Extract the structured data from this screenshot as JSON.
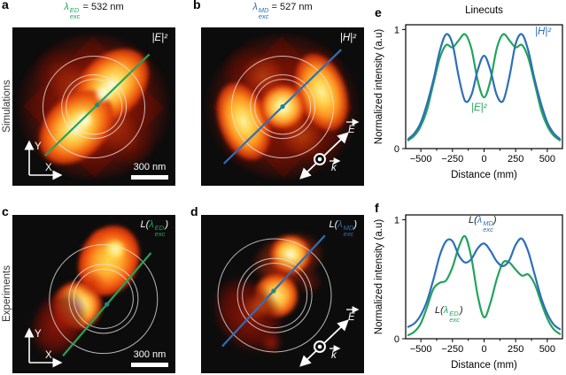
{
  "row_labels": {
    "simulations": "Simulations",
    "experiments": "Experiments"
  },
  "colors": {
    "ed_green": "#23a45c",
    "md_blue": "#2d6fb8",
    "teal_marker": "#1f8a7d",
    "hot_core": "#ffffff",
    "hot_mid": "#ff9e2a",
    "hot_low": "#7a120a",
    "panel_bg": "#0d0c0c"
  },
  "panels": {
    "a": {
      "letter": "a",
      "title": {
        "lambda": "λ",
        "sup": "ED",
        "sub": "exc",
        "rest": "= 532 nm"
      },
      "field_label": "|E|²",
      "scale_bar_label": "300 nm",
      "axes": {
        "x": "X",
        "y": "Y"
      }
    },
    "b": {
      "letter": "b",
      "title": {
        "lambda": "λ",
        "sup": "MD",
        "sub": "exc",
        "rest": "= 527 nm"
      },
      "field_label": "|H|²",
      "vectors": {
        "E": "E",
        "k": "k"
      }
    },
    "c": {
      "letter": "c",
      "label": {
        "pre": "L(",
        "lambda": "λ",
        "sup": "ED",
        "sub": "exc",
        "post": ")"
      },
      "scale_bar_label": "300 nm",
      "axes": {
        "x": "X",
        "y": "Y"
      }
    },
    "d": {
      "letter": "d",
      "label": {
        "pre": "L(",
        "lambda": "λ",
        "sup": "MD",
        "sub": "exc",
        "post": ")"
      },
      "vectors": {
        "E": "E",
        "k": "k"
      }
    },
    "e": {
      "letter": "e"
    },
    "f": {
      "letter": "f",
      "series_labels": {
        "MD": {
          "pre": "L(",
          "lambda": "λ",
          "sup": "MD",
          "sub": "exc",
          "post": ")"
        },
        "ED": {
          "pre": "L(",
          "lambda": "λ",
          "sup": "ED",
          "sub": "exc",
          "post": ")"
        }
      }
    }
  },
  "chart_data": [
    {
      "type": "line",
      "title": "Linecuts",
      "xlabel": "Distance (mm)",
      "ylabel": "Normalized intensity (a.u)",
      "xlim": [
        -620,
        620
      ],
      "ylim": [
        0,
        1.04
      ],
      "xticks": [
        -500,
        -250,
        0,
        250,
        500
      ],
      "xminor": [
        -375,
        -125,
        125,
        375
      ],
      "yticks": [
        0,
        1
      ],
      "legend_position": "inline labels",
      "x": [
        -600,
        -550,
        -500,
        -450,
        -400,
        -350,
        -300,
        -250,
        -200,
        -150,
        -100,
        -50,
        0,
        50,
        100,
        150,
        200,
        250,
        300,
        350,
        400,
        450,
        500,
        550,
        600
      ],
      "series": [
        {
          "name": "|E|²",
          "color": "#23a45c",
          "values": [
            0.07,
            0.11,
            0.19,
            0.33,
            0.55,
            0.76,
            0.87,
            0.85,
            0.91,
            0.96,
            0.84,
            0.57,
            0.43,
            0.57,
            0.84,
            0.96,
            0.91,
            0.85,
            0.87,
            0.76,
            0.55,
            0.33,
            0.19,
            0.11,
            0.07
          ]
        },
        {
          "name": "|H|²",
          "color": "#2d6fb8",
          "values": [
            0.08,
            0.13,
            0.22,
            0.38,
            0.58,
            0.82,
            0.96,
            0.88,
            0.6,
            0.4,
            0.45,
            0.66,
            0.78,
            0.66,
            0.45,
            0.4,
            0.6,
            0.88,
            0.96,
            0.82,
            0.58,
            0.38,
            0.22,
            0.13,
            0.08
          ]
        }
      ]
    },
    {
      "type": "line",
      "title": "",
      "xlabel": "Distance (mm)",
      "ylabel": "Normalized intensity (a.u)",
      "xlim": [
        -620,
        620
      ],
      "ylim": [
        0,
        1.04
      ],
      "xticks": [
        -500,
        -250,
        0,
        250,
        500
      ],
      "xminor": [
        -375,
        -125,
        125,
        375
      ],
      "yticks": [
        0,
        1
      ],
      "legend_position": "inline labels",
      "x": [
        -600,
        -550,
        -500,
        -450,
        -400,
        -350,
        -300,
        -250,
        -200,
        -150,
        -100,
        -50,
        0,
        50,
        100,
        150,
        200,
        250,
        300,
        350,
        400,
        450,
        500,
        550,
        600
      ],
      "series": [
        {
          "name": "L(λ_exc^ED)",
          "color": "#23a45c",
          "values": [
            0.03,
            0.06,
            0.13,
            0.27,
            0.42,
            0.47,
            0.49,
            0.6,
            0.77,
            0.86,
            0.68,
            0.36,
            0.18,
            0.3,
            0.5,
            0.64,
            0.64,
            0.58,
            0.53,
            0.54,
            0.46,
            0.31,
            0.17,
            0.08,
            0.04
          ]
        },
        {
          "name": "L(λ_exc^MD)",
          "color": "#2d6fb8",
          "values": [
            0.1,
            0.13,
            0.2,
            0.32,
            0.5,
            0.7,
            0.82,
            0.82,
            0.7,
            0.64,
            0.67,
            0.76,
            0.8,
            0.74,
            0.65,
            0.61,
            0.66,
            0.79,
            0.84,
            0.73,
            0.54,
            0.35,
            0.21,
            0.12,
            0.08
          ]
        }
      ]
    }
  ]
}
